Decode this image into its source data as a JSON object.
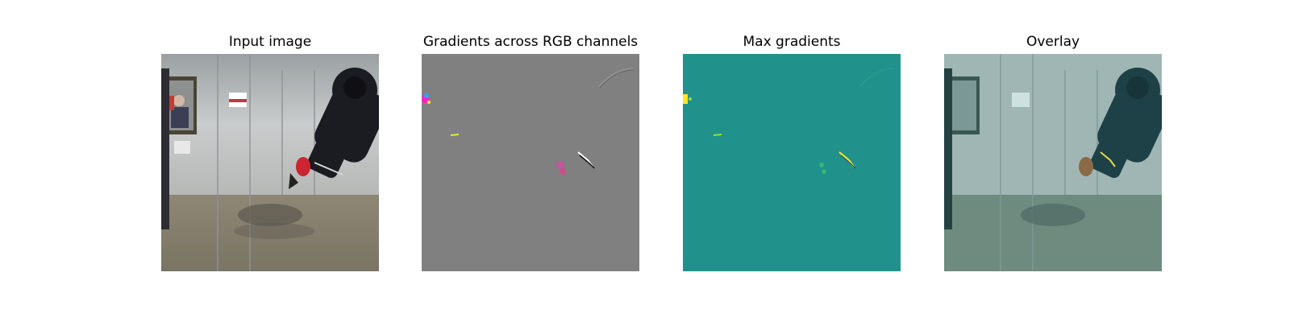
{
  "panels": [
    {
      "title": "Input image"
    },
    {
      "title": "Gradients across RGB channels"
    },
    {
      "title": "Max gradients"
    },
    {
      "title": "Overlay"
    }
  ],
  "colors": {
    "background": "#ffffff",
    "gradient_gray": "#808080",
    "max_gradient_teal": "#21918c",
    "gradient_hot_yellow": "#fde725",
    "gradient_mid_green": "#35b779",
    "overlay_tint": "#21918c"
  }
}
